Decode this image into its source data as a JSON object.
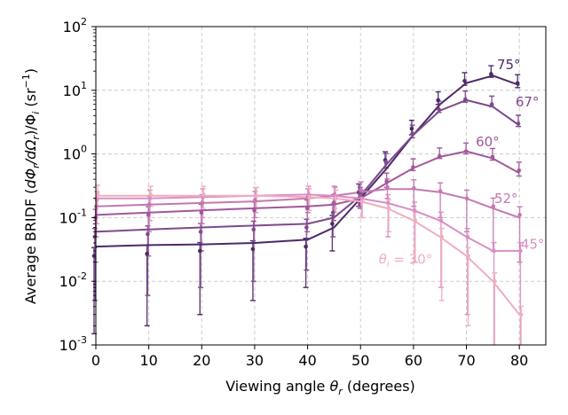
{
  "chart_data": {
    "type": "line",
    "xlabel": "Viewing angle θ_r (degrees)",
    "ylabel": "Average BRIDF (dΦ_r/dΩ_r)/Φ_i (sr^-1)",
    "xlim": [
      0,
      85
    ],
    "ylim": [
      0.001,
      100
    ],
    "yscale": "log",
    "grid": true,
    "x_ticks": [
      "0",
      "10",
      "20",
      "30",
      "40",
      "50",
      "60",
      "70",
      "80"
    ],
    "y_ticks": [
      "10^-3",
      "10^-2",
      "10^-1",
      "10^0",
      "10^1",
      "10^2"
    ],
    "x": [
      0,
      10,
      20,
      30,
      40,
      45,
      50,
      55,
      60,
      65,
      70,
      75,
      80
    ],
    "series": [
      {
        "name": "75°",
        "label_text": "75°",
        "color": "#4b2a68",
        "values": [
          0.035,
          0.037,
          0.038,
          0.04,
          0.045,
          0.07,
          0.2,
          0.6,
          2.0,
          6.0,
          13.0,
          17.0,
          12.0
        ],
        "points": [
          0.025,
          0.027,
          0.03,
          0.032,
          0.035,
          0.08,
          0.25,
          0.8,
          2.5,
          7.0,
          14.0,
          18.0,
          13.0
        ],
        "lower_err": [
          0.0015,
          0.002,
          0.003,
          0.005,
          0.008,
          0.03,
          0.15,
          0.6,
          2.0,
          6.0,
          12.0,
          16.0,
          11.0
        ]
      },
      {
        "name": "67°",
        "label_text": "67°",
        "color": "#7d4a8c",
        "values": [
          0.06,
          0.065,
          0.07,
          0.075,
          0.08,
          0.1,
          0.22,
          0.7,
          2.0,
          4.8,
          7.0,
          5.5,
          2.8
        ],
        "points": [
          0.05,
          0.055,
          0.06,
          0.065,
          0.07,
          0.12,
          0.25,
          0.75,
          2.1,
          5.0,
          7.2,
          6.0,
          3.0
        ],
        "lower_err": [
          0.005,
          0.006,
          0.008,
          0.01,
          0.015,
          0.05,
          0.15,
          0.6,
          1.8,
          4.5,
          6.5,
          5.5,
          2.7
        ]
      },
      {
        "name": "60°",
        "label_text": "60°",
        "color": "#a3579b",
        "values": [
          0.11,
          0.12,
          0.13,
          0.14,
          0.15,
          0.16,
          0.2,
          0.35,
          0.6,
          0.9,
          1.1,
          0.85,
          0.5
        ],
        "points": [
          0.1,
          0.11,
          0.12,
          0.13,
          0.14,
          0.17,
          0.22,
          0.37,
          0.62,
          0.92,
          1.1,
          0.9,
          0.55
        ],
        "lower_err": [
          0.02,
          0.025,
          0.03,
          0.04,
          0.06,
          0.09,
          0.14,
          0.3,
          0.55,
          0.85,
          1.0,
          0.8,
          0.45
        ]
      },
      {
        "name": "52°",
        "label_text": "52°",
        "color": "#c478b3",
        "values": [
          0.15,
          0.16,
          0.17,
          0.18,
          0.2,
          0.22,
          0.25,
          0.28,
          0.28,
          0.25,
          0.2,
          0.14,
          0.1
        ],
        "points": [
          0.15,
          0.16,
          0.17,
          0.19,
          0.21,
          0.23,
          0.27,
          0.3,
          0.29,
          0.26,
          0.2,
          0.15,
          0.11
        ],
        "lower_err": [
          0.05,
          0.06,
          0.08,
          0.1,
          0.12,
          0.14,
          0.18,
          0.2,
          0.15,
          0.1,
          0.06,
          0.03,
          0.02
        ]
      },
      {
        "name": "45°",
        "label_text": "45°",
        "color": "#d98ec4",
        "values": [
          0.2,
          0.2,
          0.21,
          0.22,
          0.23,
          0.22,
          0.2,
          0.17,
          0.13,
          0.09,
          0.05,
          0.03,
          0.03
        ],
        "points": [
          0.19,
          0.2,
          0.21,
          0.22,
          0.23,
          0.22,
          0.2,
          0.17,
          0.13,
          0.09,
          0.05,
          0.03,
          0.03
        ],
        "lower_err": [
          0.08,
          0.09,
          0.1,
          0.12,
          0.13,
          0.12,
          0.1,
          0.05,
          0.02,
          0.008,
          0.003,
          0.001,
          0.001
        ]
      },
      {
        "name": "θ_i = 30°",
        "label_text": "θ_i = 30°",
        "color": "#f0aec0",
        "values": [
          0.22,
          0.22,
          0.22,
          0.22,
          0.21,
          0.2,
          0.18,
          0.14,
          0.09,
          0.05,
          0.025,
          0.01,
          0.003
        ],
        "points": [
          0.24,
          0.23,
          0.23,
          0.22,
          0.21,
          0.2,
          0.18,
          0.14,
          0.09,
          0.05,
          0.025,
          0.01,
          0.003
        ],
        "lower_err": [
          0.15,
          0.15,
          0.14,
          0.14,
          0.13,
          0.12,
          0.1,
          0.06,
          0.02,
          0.005,
          0.002,
          0.001,
          0.001
        ]
      }
    ]
  }
}
